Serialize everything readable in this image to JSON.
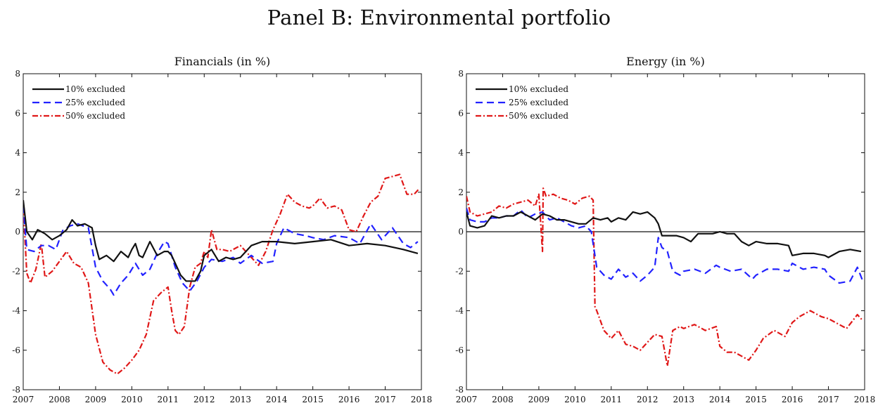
{
  "title": "Panel B: Environmental portfolio",
  "colors": {
    "series_10": "#111111",
    "series_25": "#2222ff",
    "series_50": "#e01818",
    "zero_line": "#111111"
  },
  "chart_data": [
    {
      "type": "line",
      "title": "Financials (in %)",
      "xlabel": "",
      "ylabel": "",
      "xlim": [
        2007,
        2018
      ],
      "ylim": [
        -8,
        8
      ],
      "xticks": [
        "2007",
        "2008",
        "2009",
        "2010",
        "2011",
        "2012",
        "2013",
        "2014",
        "2015",
        "2016",
        "2017",
        "2018"
      ],
      "yticks": [
        "-8",
        "-6",
        "-4",
        "-2",
        "0",
        "2",
        "4",
        "6",
        "8"
      ],
      "legend": "top-left",
      "reference_line": 0,
      "series": [
        {
          "name": "10% excluded",
          "style": "solid",
          "color": "#111111",
          "x": [
            2007.0,
            2007.1,
            2007.25,
            2007.4,
            2007.6,
            2007.8,
            2008.0,
            2008.2,
            2008.35,
            2008.5,
            2008.7,
            2008.9,
            2009.0,
            2009.1,
            2009.3,
            2009.5,
            2009.7,
            2009.9,
            2010.0,
            2010.1,
            2010.2,
            2010.3,
            2010.5,
            2010.7,
            2010.9,
            2011.0,
            2011.1,
            2011.2,
            2011.35,
            2011.5,
            2011.6,
            2011.75,
            2011.9,
            2012.0,
            2012.2,
            2012.4,
            2012.6,
            2012.8,
            2013.0,
            2013.3,
            2013.6,
            2014.0,
            2014.5,
            2015.0,
            2015.5,
            2016.0,
            2016.5,
            2017.0,
            2017.5,
            2017.9
          ],
          "y": [
            1.6,
            0.0,
            -0.4,
            0.1,
            -0.1,
            -0.4,
            -0.2,
            0.1,
            0.6,
            0.3,
            0.4,
            0.2,
            -0.7,
            -1.4,
            -1.2,
            -1.5,
            -1.0,
            -1.3,
            -0.9,
            -0.6,
            -1.2,
            -1.3,
            -0.5,
            -1.2,
            -1.0,
            -1.0,
            -1.2,
            -1.6,
            -2.2,
            -2.5,
            -2.5,
            -2.5,
            -2.0,
            -1.2,
            -0.9,
            -1.5,
            -1.3,
            -1.4,
            -1.3,
            -0.7,
            -0.5,
            -0.5,
            -0.6,
            -0.5,
            -0.4,
            -0.7,
            -0.6,
            -0.7,
            -0.9,
            -1.1
          ]
        },
        {
          "name": "25% excluded",
          "style": "dashed",
          "color": "#2222ff",
          "x": [
            2007.0,
            2007.1,
            2007.3,
            2007.5,
            2007.7,
            2007.9,
            2008.1,
            2008.3,
            2008.5,
            2008.8,
            2009.0,
            2009.2,
            2009.4,
            2009.5,
            2009.7,
            2009.9,
            2010.1,
            2010.3,
            2010.5,
            2010.7,
            2010.9,
            2011.0,
            2011.2,
            2011.4,
            2011.6,
            2011.8,
            2012.0,
            2012.2,
            2012.5,
            2012.8,
            2013.0,
            2013.3,
            2013.6,
            2013.9,
            2014.0,
            2014.2,
            2014.5,
            2014.8,
            2015.0,
            2015.3,
            2015.6,
            2016.0,
            2016.3,
            2016.6,
            2016.9,
            2017.2,
            2017.5,
            2017.7,
            2017.9
          ],
          "y": [
            1.3,
            -0.9,
            -1.0,
            -0.7,
            -0.7,
            -0.9,
            0.1,
            0.3,
            0.4,
            0.2,
            -1.8,
            -2.5,
            -2.9,
            -3.2,
            -2.6,
            -2.2,
            -1.6,
            -2.2,
            -1.9,
            -1.1,
            -0.5,
            -0.6,
            -1.8,
            -2.6,
            -3.0,
            -2.5,
            -1.8,
            -1.4,
            -1.5,
            -1.3,
            -1.6,
            -1.2,
            -1.6,
            -1.5,
            -0.6,
            0.2,
            -0.1,
            -0.2,
            -0.3,
            -0.4,
            -0.2,
            -0.3,
            -0.6,
            0.4,
            -0.4,
            0.2,
            -0.6,
            -0.8,
            -0.5
          ]
        },
        {
          "name": "50% excluded",
          "style": "dashdot",
          "color": "#e01818",
          "x": [
            2007.0,
            2007.1,
            2007.2,
            2007.35,
            2007.5,
            2007.6,
            2007.8,
            2008.0,
            2008.2,
            2008.4,
            2008.6,
            2008.8,
            2009.0,
            2009.2,
            2009.4,
            2009.6,
            2009.8,
            2010.0,
            2010.2,
            2010.4,
            2010.6,
            2010.8,
            2011.0,
            2011.1,
            2011.2,
            2011.3,
            2011.45,
            2011.6,
            2011.75,
            2011.9,
            2012.0,
            2012.1,
            2012.2,
            2012.35,
            2012.5,
            2012.7,
            2012.9,
            2013.0,
            2013.2,
            2013.5,
            2013.7,
            2013.9,
            2014.1,
            2014.3,
            2014.5,
            2014.7,
            2014.9,
            2015.0,
            2015.2,
            2015.4,
            2015.6,
            2015.8,
            2016.0,
            2016.2,
            2016.4,
            2016.6,
            2016.8,
            2017.0,
            2017.2,
            2017.4,
            2017.6,
            2017.8,
            2017.95
          ],
          "y": [
            1.3,
            -2.1,
            -2.6,
            -1.9,
            -0.6,
            -2.3,
            -2.0,
            -1.5,
            -1.0,
            -1.6,
            -1.8,
            -2.6,
            -5.2,
            -6.6,
            -7.0,
            -7.2,
            -6.9,
            -6.5,
            -6.0,
            -5.2,
            -3.5,
            -3.1,
            -2.8,
            -4.0,
            -5.0,
            -5.2,
            -4.8,
            -2.8,
            -1.8,
            -1.6,
            -1.0,
            -1.3,
            0.1,
            -0.9,
            -0.9,
            -1.0,
            -0.8,
            -0.7,
            -1.1,
            -1.7,
            -1.0,
            0.1,
            0.9,
            1.9,
            1.5,
            1.3,
            1.2,
            1.3,
            1.7,
            1.2,
            1.3,
            1.1,
            0.1,
            0.0,
            0.8,
            1.5,
            1.8,
            2.7,
            2.8,
            2.9,
            1.9,
            1.9,
            2.2
          ]
        }
      ]
    },
    {
      "type": "line",
      "title": "Energy (in %)",
      "xlabel": "",
      "ylabel": "",
      "xlim": [
        2007,
        2018
      ],
      "ylim": [
        -8,
        8
      ],
      "xticks": [
        "2007",
        "2008",
        "2009",
        "2010",
        "2011",
        "2012",
        "2013",
        "2014",
        "2015",
        "2016",
        "2017",
        "2018"
      ],
      "yticks": [
        "-8",
        "-6",
        "-4",
        "-2",
        "0",
        "2",
        "4",
        "6",
        "8"
      ],
      "legend": "top-left",
      "reference_line": 0,
      "series": [
        {
          "name": "10% excluded",
          "style": "solid",
          "color": "#111111",
          "x": [
            2007.0,
            2007.1,
            2007.3,
            2007.5,
            2007.7,
            2007.9,
            2008.1,
            2008.3,
            2008.5,
            2008.7,
            2008.9,
            2009.1,
            2009.3,
            2009.5,
            2009.7,
            2009.9,
            2010.1,
            2010.3,
            2010.5,
            2010.7,
            2010.9,
            2011.0,
            2011.2,
            2011.4,
            2011.6,
            2011.8,
            2012.0,
            2012.2,
            2012.3,
            2012.4,
            2012.6,
            2012.8,
            2013.0,
            2013.2,
            2013.4,
            2013.6,
            2013.8,
            2014.0,
            2014.2,
            2014.4,
            2014.6,
            2014.8,
            2015.0,
            2015.3,
            2015.6,
            2015.9,
            2016.0,
            2016.3,
            2016.6,
            2016.9,
            2017.0,
            2017.3,
            2017.6,
            2017.9
          ],
          "y": [
            1.0,
            0.3,
            0.2,
            0.3,
            0.8,
            0.7,
            0.8,
            0.8,
            1.0,
            0.8,
            0.6,
            0.9,
            0.8,
            0.6,
            0.6,
            0.5,
            0.4,
            0.4,
            0.7,
            0.6,
            0.7,
            0.5,
            0.7,
            0.6,
            1.0,
            0.9,
            1.0,
            0.7,
            0.4,
            -0.2,
            -0.2,
            -0.2,
            -0.3,
            -0.5,
            -0.1,
            -0.1,
            -0.1,
            0.0,
            -0.1,
            -0.1,
            -0.5,
            -0.7,
            -0.5,
            -0.6,
            -0.6,
            -0.7,
            -1.2,
            -1.1,
            -1.1,
            -1.2,
            -1.3,
            -1.0,
            -0.9,
            -1.0
          ]
        },
        {
          "name": "25% excluded",
          "style": "dashed",
          "color": "#2222ff",
          "x": [
            2007.0,
            2007.1,
            2007.3,
            2007.5,
            2007.7,
            2007.9,
            2008.1,
            2008.3,
            2008.5,
            2008.7,
            2008.9,
            2009.1,
            2009.3,
            2009.5,
            2009.7,
            2009.9,
            2010.1,
            2010.3,
            2010.45,
            2010.6,
            2010.8,
            2011.0,
            2011.2,
            2011.4,
            2011.6,
            2011.8,
            2012.0,
            2012.2,
            2012.3,
            2012.4,
            2012.55,
            2012.7,
            2012.9,
            2013.0,
            2013.3,
            2013.6,
            2013.9,
            2014.0,
            2014.3,
            2014.6,
            2014.9,
            2015.0,
            2015.3,
            2015.6,
            2015.9,
            2016.0,
            2016.3,
            2016.6,
            2016.9,
            2017.0,
            2017.3,
            2017.6,
            2017.8,
            2017.95
          ],
          "y": [
            1.2,
            0.6,
            0.5,
            0.5,
            0.7,
            0.7,
            0.8,
            0.8,
            1.1,
            0.7,
            0.9,
            1.0,
            0.6,
            0.7,
            0.5,
            0.3,
            0.2,
            0.3,
            0.0,
            -1.8,
            -2.2,
            -2.4,
            -1.9,
            -2.3,
            -2.1,
            -2.5,
            -2.2,
            -1.8,
            -0.3,
            -0.8,
            -1.0,
            -2.0,
            -2.2,
            -2.0,
            -1.9,
            -2.1,
            -1.7,
            -1.8,
            -2.0,
            -1.9,
            -2.4,
            -2.2,
            -1.9,
            -1.9,
            -2.0,
            -1.6,
            -1.9,
            -1.8,
            -1.9,
            -2.2,
            -2.6,
            -2.5,
            -1.8,
            -2.5
          ]
        },
        {
          "name": "50% excluded",
          "style": "dashdot",
          "color": "#e01818",
          "x": [
            2007.0,
            2007.1,
            2007.3,
            2007.5,
            2007.7,
            2007.9,
            2008.1,
            2008.3,
            2008.5,
            2008.7,
            2008.9,
            2009.0,
            2009.1,
            2009.12,
            2009.2,
            2009.4,
            2009.6,
            2009.8,
            2010.0,
            2010.2,
            2010.4,
            2010.5,
            2010.55,
            2010.6,
            2010.8,
            2011.0,
            2011.2,
            2011.4,
            2011.6,
            2011.8,
            2012.0,
            2012.2,
            2012.4,
            2012.55,
            2012.7,
            2012.9,
            2013.0,
            2013.3,
            2013.6,
            2013.9,
            2014.0,
            2014.2,
            2014.4,
            2014.6,
            2014.8,
            2015.0,
            2015.2,
            2015.5,
            2015.8,
            2016.0,
            2016.2,
            2016.5,
            2016.8,
            2017.0,
            2017.2,
            2017.5,
            2017.8,
            2017.95
          ],
          "y": [
            1.8,
            1.0,
            0.8,
            0.9,
            1.0,
            1.3,
            1.2,
            1.4,
            1.5,
            1.6,
            1.3,
            1.9,
            -1.0,
            2.2,
            1.8,
            1.9,
            1.7,
            1.6,
            1.4,
            1.7,
            1.8,
            1.6,
            -3.8,
            -4.0,
            -5.0,
            -5.4,
            -5.0,
            -5.7,
            -5.8,
            -6.0,
            -5.6,
            -5.2,
            -5.3,
            -6.8,
            -5.0,
            -4.8,
            -4.9,
            -4.7,
            -5.0,
            -4.8,
            -5.8,
            -6.1,
            -6.1,
            -6.3,
            -6.5,
            -6.0,
            -5.4,
            -5.0,
            -5.3,
            -4.6,
            -4.3,
            -4.0,
            -4.3,
            -4.4,
            -4.6,
            -4.9,
            -4.2,
            -4.5
          ]
        }
      ]
    }
  ]
}
